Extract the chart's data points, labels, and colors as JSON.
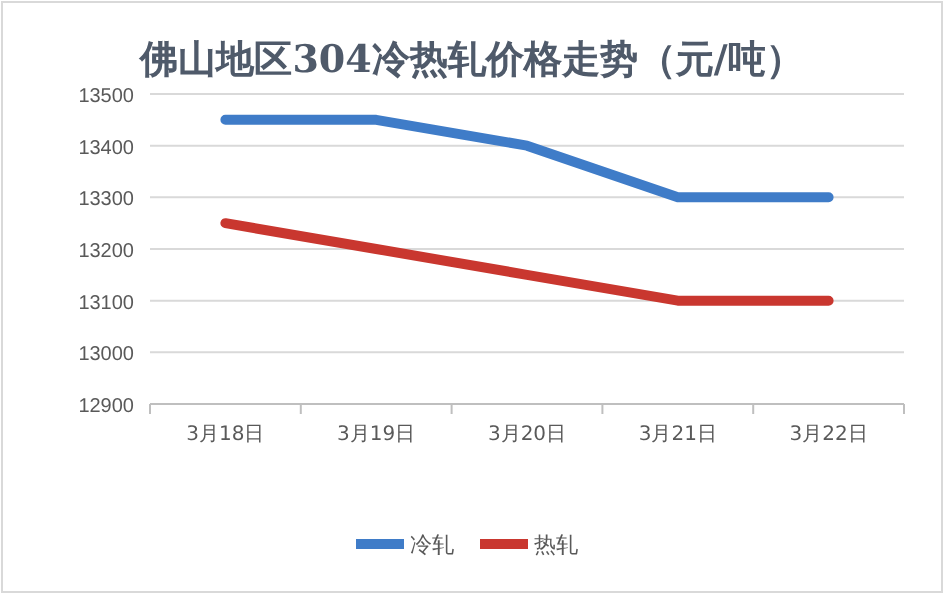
{
  "chart_data": {
    "type": "line",
    "title": "佛山地区304冷热轧价格走势（元/吨）",
    "categories": [
      "3月18日",
      "3月19日",
      "3月20日",
      "3月21日",
      "3月22日"
    ],
    "series": [
      {
        "name": "冷轧",
        "color": "#3f7cc8",
        "values": [
          13450,
          13450,
          13400,
          13300,
          13300
        ]
      },
      {
        "name": "热轧",
        "color": "#c9372f",
        "values": [
          13250,
          13200,
          13150,
          13100,
          13100
        ]
      }
    ],
    "ylim": [
      12900,
      13500
    ],
    "yticks": [
      12900,
      13000,
      13100,
      13200,
      13300,
      13400,
      13500
    ],
    "grid": "y",
    "legend": "bottom"
  }
}
